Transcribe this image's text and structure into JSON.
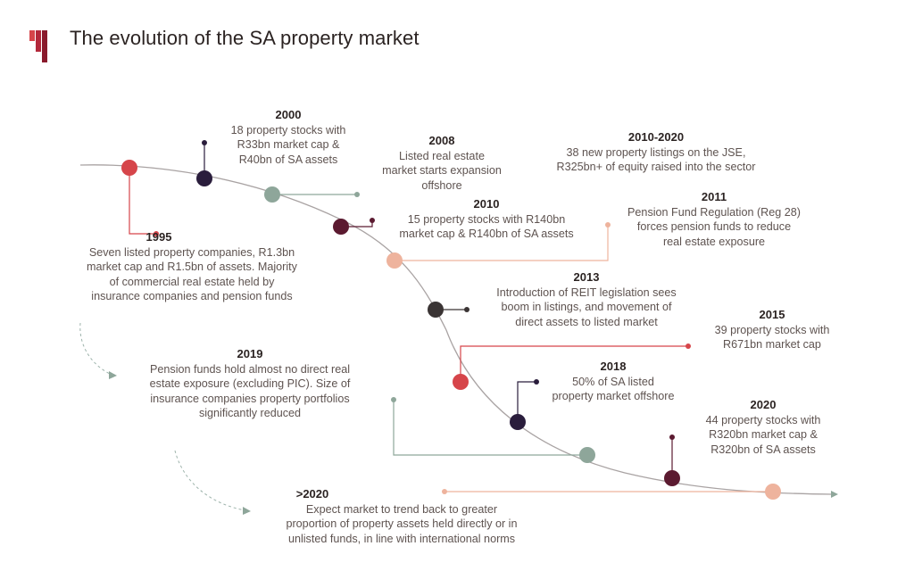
{
  "title": "The evolution of  the SA property market",
  "colors": {
    "red": "#d6454a",
    "navy": "#2a1d3c",
    "sage": "#8ea69a",
    "plum": "#5b1a30",
    "peach": "#eeb39d",
    "charcoal": "#3a3434",
    "line": "#a9a3a3",
    "dashed": "#9db3ab"
  },
  "events": [
    {
      "year": "1995",
      "text": "Seven listed property companies, R1.3bn\nmarket cap and R1.5bn of assets. Majority\nof commercial real estate held by\ninsurance companies and pension funds"
    },
    {
      "year": "2000",
      "text": "18 property stocks with\nR33bn market cap &\nR40bn of SA assets"
    },
    {
      "year": "2008",
      "text": "Listed real estate\nmarket starts expansion\noffshore"
    },
    {
      "year": "2010",
      "text": "15 property stocks with R140bn\nmarket cap & R140bn of SA assets"
    },
    {
      "year": "2010-2020",
      "text": "38 new property listings on the JSE,\nR325bn+ of equity raised into the sector"
    },
    {
      "year": "2011",
      "text": "Pension Fund Regulation (Reg 28)\nforces pension funds to reduce\nreal estate exposure"
    },
    {
      "year": "2013",
      "text": "Introduction of REIT legislation sees\nboom in listings, and movement of\ndirect assets to listed market"
    },
    {
      "year": "2015",
      "text": "39 property stocks with\nR671bn market cap"
    },
    {
      "year": "2018",
      "text": "50% of SA listed\nproperty market offshore"
    },
    {
      "year": "2019",
      "text": "Pension funds hold almost no direct real\nestate exposure (excluding PIC). Size of\ninsurance companies property portfolios\nsignificantly reduced"
    },
    {
      "year": "2020",
      "text": "44 property stocks with\nR320bn market cap &\nR320bn of SA assets"
    },
    {
      "year": ">2020",
      "text": "Expect market to trend back to greater\nproportion of property assets held directly or in\nunlisted funds, in line with international norms"
    }
  ]
}
